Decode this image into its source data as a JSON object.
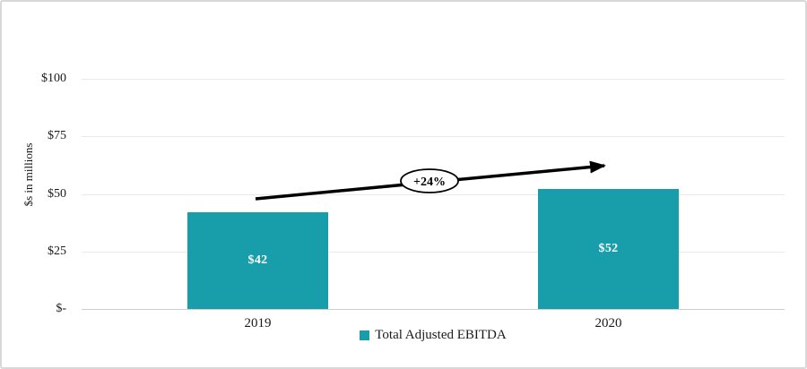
{
  "chart_data": {
    "type": "bar",
    "title": "",
    "xlabel": "",
    "ylabel": "$s in millions",
    "categories": [
      "2019",
      "2020"
    ],
    "values": [
      42,
      52
    ],
    "bar_value_labels": [
      "$42",
      "$52"
    ],
    "ylim": [
      0,
      100
    ],
    "ytick_values": [
      0,
      25,
      50,
      75,
      100
    ],
    "ytick_labels": [
      "$-",
      "$25",
      "$50",
      "$75",
      "$100"
    ],
    "grid": true,
    "series_color": "#189EAB",
    "bar_label_color": "#FFFFFF",
    "legend": {
      "position": "bottom",
      "entries": [
        {
          "label": "Total Adjusted EBITDA",
          "color": "#189EAB"
        }
      ]
    },
    "annotations": [
      {
        "type": "growth-arrow",
        "label": "+24%",
        "from_category": "2019",
        "to_category": "2020"
      }
    ]
  }
}
